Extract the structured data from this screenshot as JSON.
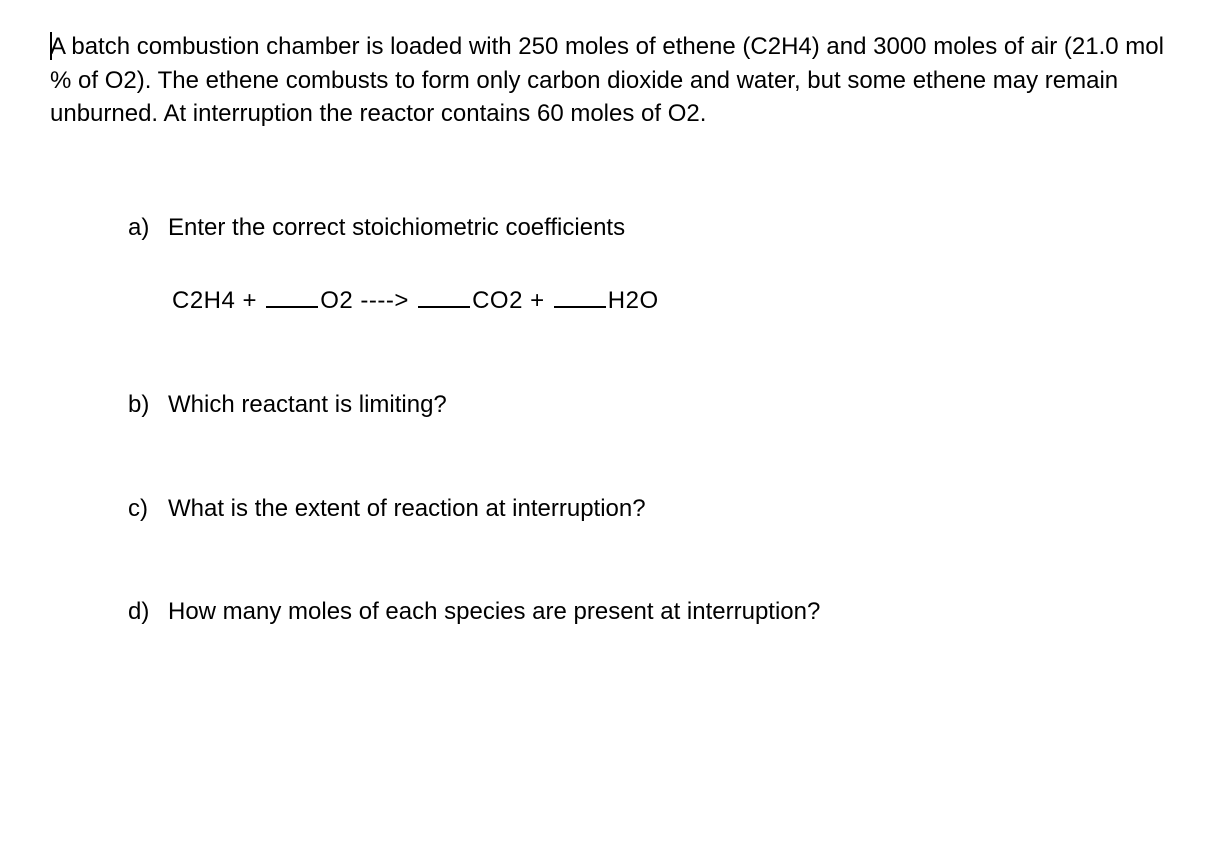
{
  "problem": {
    "text": "A batch combustion chamber is loaded with 250 moles of ethene (C2H4) and 3000 moles of air (21.0 mol % of O2).  The ethene combusts to form only carbon dioxide and water, but some ethene may remain unburned.  At interruption  the reactor contains 60 moles of O2."
  },
  "questions": {
    "a": {
      "label": "a)",
      "text": "Enter the correct stoichiometric coefficients",
      "equation": {
        "part1": "C2H4 + ",
        "part2": "O2 ----> ",
        "part3": "CO2 + ",
        "part4": "H2O"
      }
    },
    "b": {
      "label": "b)",
      "text": "Which reactant is limiting?"
    },
    "c": {
      "label": "c)",
      "text": "What is the extent of reaction at interruption?"
    },
    "d": {
      "label": "d)",
      "text": "How many moles of each species are present at interruption?"
    }
  }
}
